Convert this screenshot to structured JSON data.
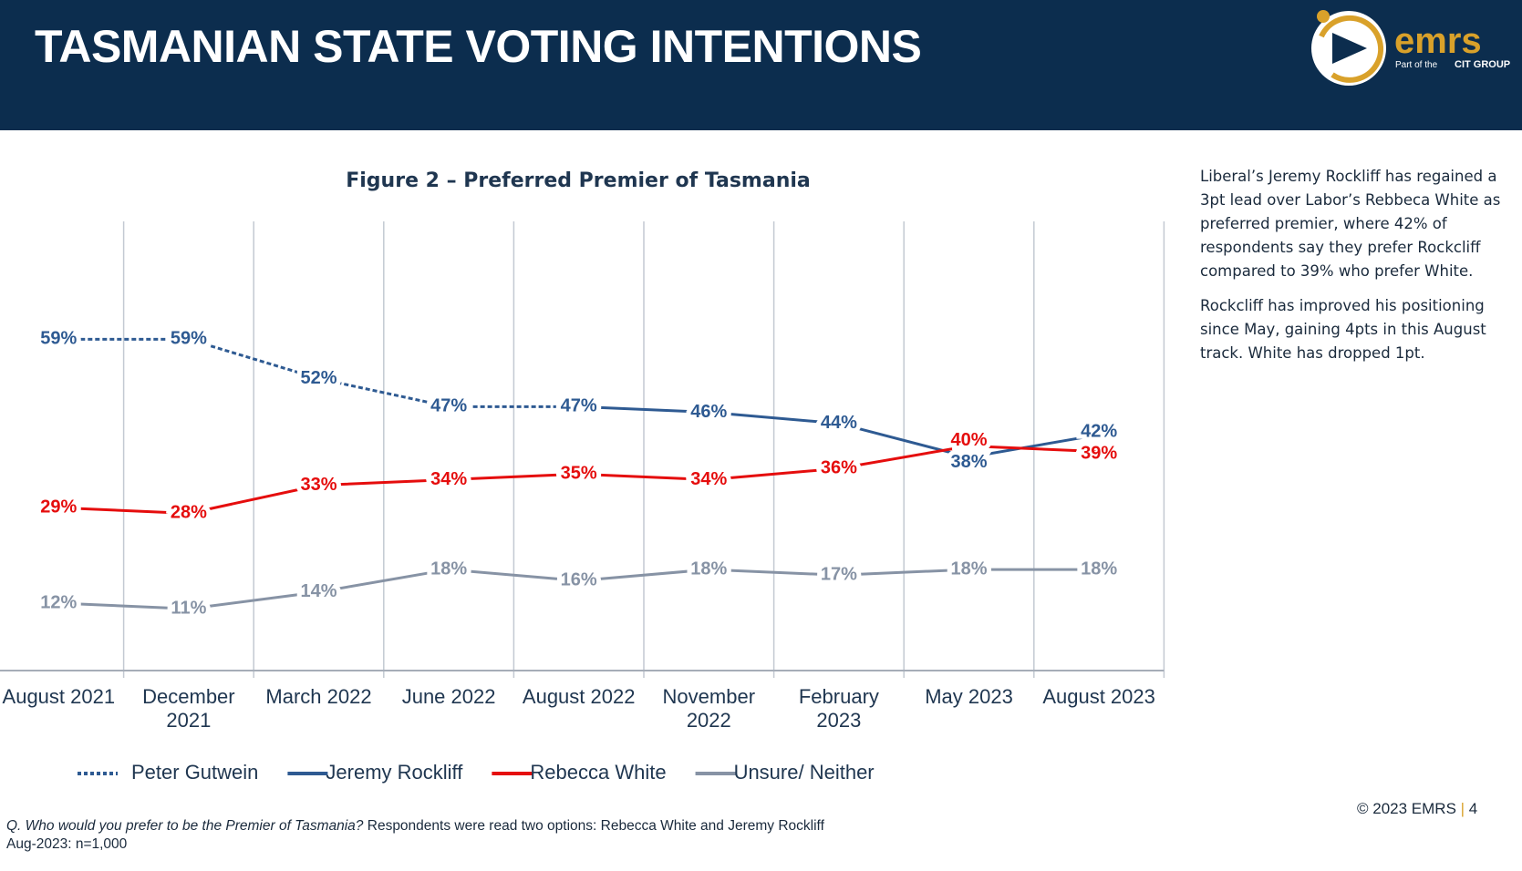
{
  "header": {
    "title": "TASMANIAN STATE VOTING INTENTIONS"
  },
  "logo": {
    "name": "emrs",
    "tagline": "Part of the",
    "group": "CIT GROUP"
  },
  "chart_data": {
    "type": "line",
    "title": "Figure 2 – Preferred Premier of Tasmania",
    "categories": [
      "August 2021",
      "December 2021",
      "March 2022",
      "June 2022",
      "August 2022",
      "November 2022",
      "February 2023",
      "May 2023",
      "August 2023"
    ],
    "ylim": [
      0,
      80
    ],
    "grid": "vertical",
    "legend": "bottom",
    "series": [
      {
        "name": "Peter Gutwein",
        "color": "#2e5a92",
        "dotted": true,
        "values": [
          59,
          59,
          52,
          47,
          47,
          null,
          null,
          null,
          null
        ],
        "value_labels": [
          "59%",
          "59%",
          "52%",
          "47%",
          "47%",
          null,
          null,
          null,
          null
        ]
      },
      {
        "name": "Jeremy Rockliff",
        "color": "#2e5a92",
        "dotted": false,
        "values": [
          null,
          null,
          null,
          null,
          47,
          46,
          44,
          38,
          42
        ],
        "value_labels": [
          null,
          null,
          null,
          null,
          "47%",
          "46%",
          "44%",
          "38%",
          "42%"
        ]
      },
      {
        "name": "Rebecca White",
        "color": "#e50d0d",
        "dotted": false,
        "values": [
          29,
          28,
          33,
          34,
          35,
          34,
          36,
          40,
          39
        ],
        "value_labels": [
          "29%",
          "28%",
          "33%",
          "34%",
          "35%",
          "34%",
          "36%",
          "40%",
          "39%"
        ]
      },
      {
        "name": "Unsure/ Neither",
        "color": "#8793a5",
        "dotted": false,
        "values": [
          12,
          11,
          14,
          18,
          16,
          18,
          17,
          18,
          18
        ],
        "value_labels": [
          "12%",
          "11%",
          "14%",
          "18%",
          "16%",
          "18%",
          "17%",
          "18%",
          "18%"
        ]
      }
    ]
  },
  "commentary": [
    "Liberal’s Jeremy Rockliff has regained a 3pt lead over Labor’s Rebbeca White as preferred premier, where 42% of respondents say they prefer Rockcliff compared to 39% who prefer White.",
    "Rockcliff has improved his positioning since May, gaining 4pts in this August track. White has dropped 1pt."
  ],
  "footer": {
    "question": "Q. Who would you prefer to be the Premier of Tasmania?",
    "question_note": "Respondents were read two options: Rebecca White and Jeremy Rockliff",
    "sample": "Aug-2023: n=1,000",
    "copyright": "© 2023 EMRS",
    "page": "4"
  }
}
